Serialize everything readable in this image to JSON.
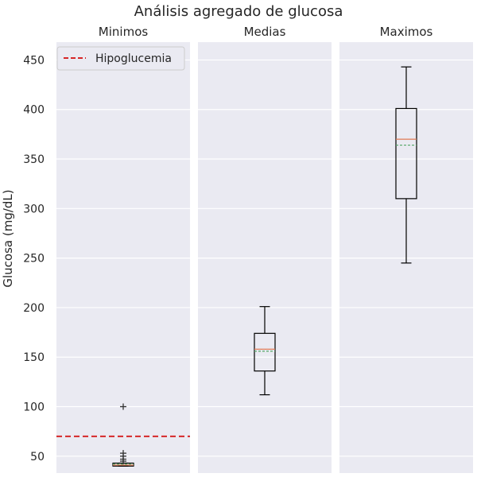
{
  "chart_data": {
    "type": "box",
    "title": "Análisis agregado de glucosa",
    "ylabel": "Glucosa (mg/dL)",
    "ylim": [
      33,
      468
    ],
    "yticks": [
      50,
      100,
      150,
      200,
      250,
      300,
      350,
      400,
      450
    ],
    "grid": true,
    "legend": {
      "label": "Hipoglucemia",
      "placement": "top-left"
    },
    "reference_line": {
      "label": "Hipoglucemia",
      "y": 70,
      "color": "#d62728",
      "panel": "Minimos"
    },
    "colors": {
      "median": "#e07b54",
      "mean": "#55a868",
      "reference": "#d62728",
      "panel_bg": "#eaeaf2",
      "grid": "#ffffff"
    },
    "panels": [
      {
        "name": "Minimos",
        "whislo": 40,
        "q1": 40,
        "median": 41,
        "mean": 42,
        "q3": 43,
        "whishi": 43,
        "fliers": [
          45,
          47,
          50,
          53,
          100
        ]
      },
      {
        "name": "Medias",
        "whislo": 112,
        "q1": 136,
        "median": 158,
        "mean": 156,
        "q3": 174,
        "whishi": 201,
        "fliers": []
      },
      {
        "name": "Maximos",
        "whislo": 245,
        "q1": 310,
        "median": 370,
        "mean": 364,
        "q3": 401,
        "whishi": 443,
        "fliers": []
      }
    ]
  }
}
